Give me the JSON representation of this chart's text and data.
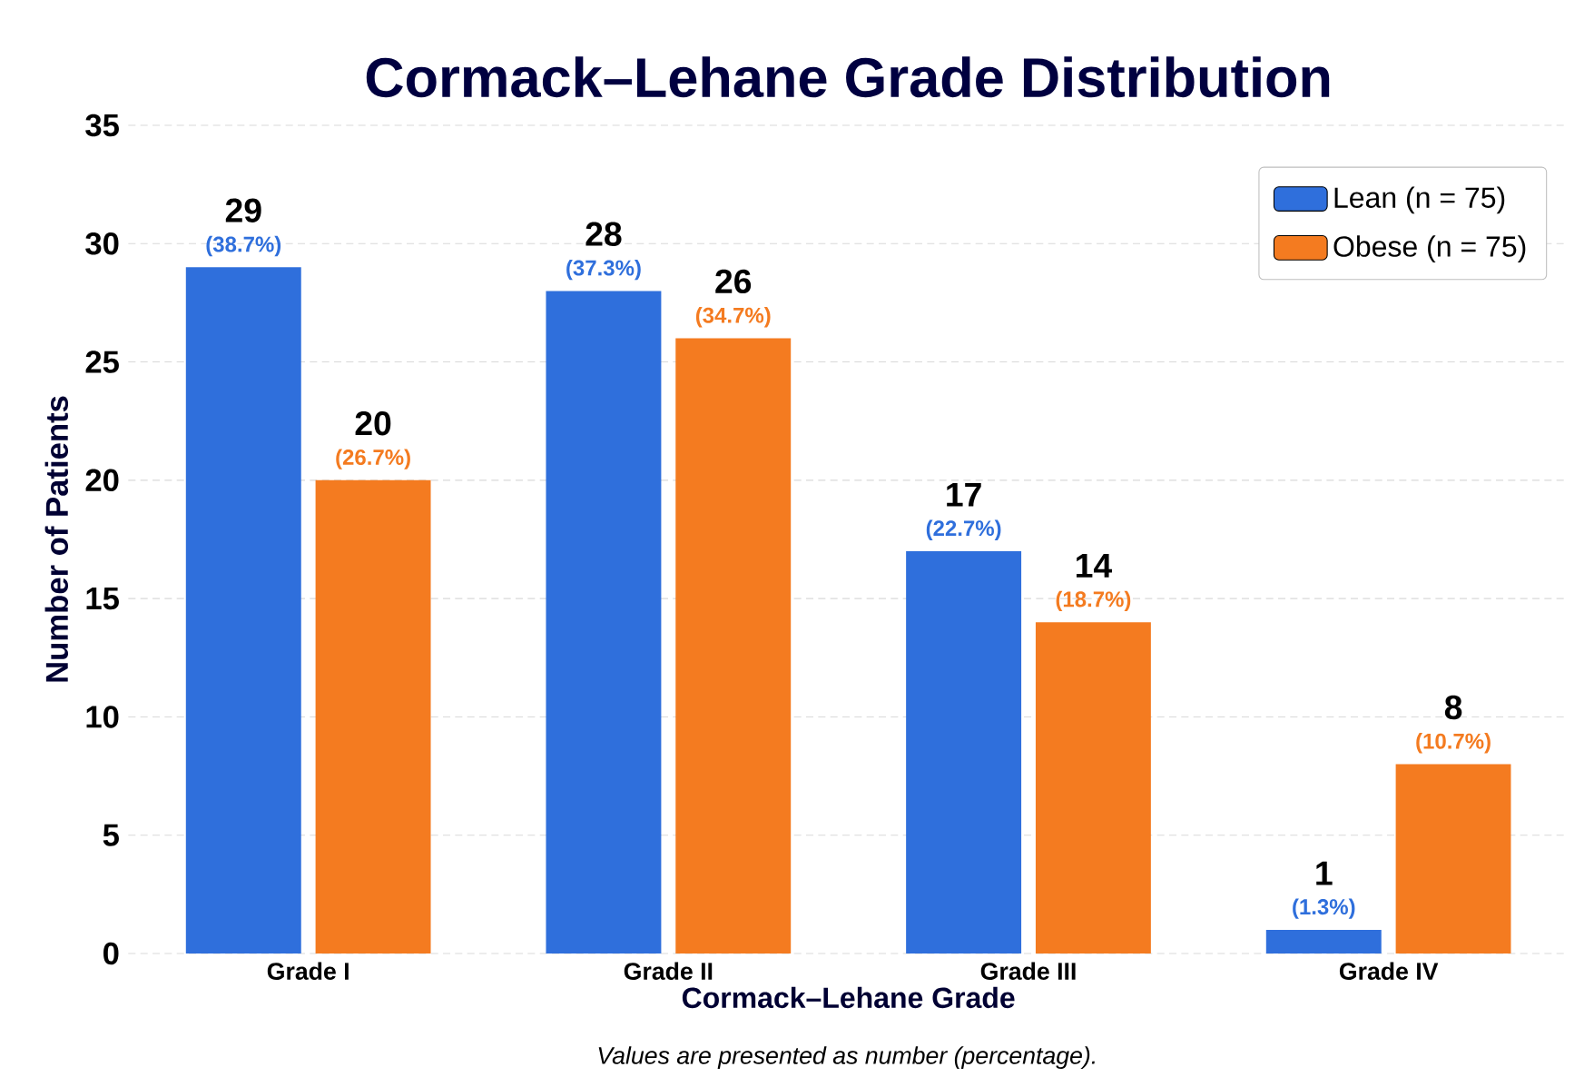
{
  "chart_data": {
    "type": "bar",
    "title": "Cormack–Lehane Grade Distribution",
    "xlabel": "Cormack–Lehane Grade",
    "ylabel": "Number of Patients",
    "categories": [
      "Grade I",
      "Grade II",
      "Grade III",
      "Grade IV"
    ],
    "series": [
      {
        "name": "Lean (n = 75)",
        "color": "#2f6fdc",
        "values": [
          29,
          28,
          17,
          1
        ]
      },
      {
        "name": "Obese (n = 75)",
        "color": "#f47b20",
        "values": [
          20,
          26,
          14,
          8
        ]
      }
    ],
    "ylim": [
      0,
      35
    ],
    "yticks": [
      0,
      5,
      10,
      15,
      20,
      25,
      30,
      35
    ],
    "grid": "y",
    "legend": "top right",
    "data_labels": true,
    "annotations": [
      {
        "text": "(38.7%)",
        "x": "Grade I",
        "y": 29
      },
      {
        "text": "(37.3%)",
        "x": "Grade II",
        "y": 28
      },
      {
        "text": "(22.7%)",
        "x": "Grade III",
        "y": 17
      },
      {
        "text": "(1.3%)",
        "x": "Grade IV",
        "y": 1
      },
      {
        "text": "(26.7%)",
        "x": "Grade I",
        "y": 20
      },
      {
        "text": "(34.7%)",
        "x": "Grade II",
        "y": 26
      },
      {
        "text": "(18.7%)",
        "x": "Grade III",
        "y": 14
      },
      {
        "text": "(10.7%)",
        "x": "Grade IV",
        "y": 8
      },
      "Values are presented as number (percentage)."
    ]
  }
}
